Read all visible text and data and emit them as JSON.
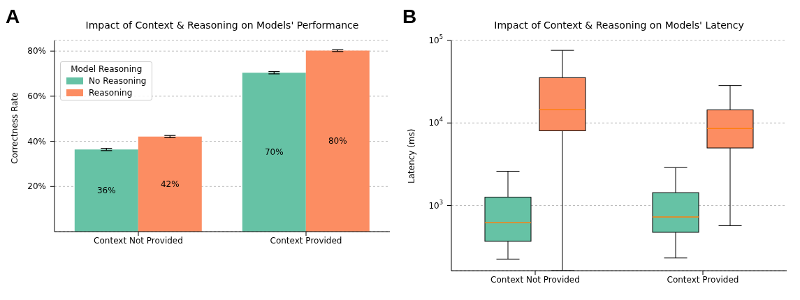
{
  "chart_data": [
    {
      "type": "bar",
      "title": "Impact of Context & Reasoning on Models' Performance",
      "ylabel": "Correctness Rate",
      "categories": [
        "Context Not Provided",
        "Context Provided"
      ],
      "series": [
        {
          "name": "No Reasoning",
          "color": "#66c2a5",
          "values": [
            36.4,
            70.4
          ],
          "errors": [
            0.5,
            0.5
          ],
          "value_labels": [
            "36%",
            "70%"
          ]
        },
        {
          "name": "Reasoning",
          "color": "#fc8d62",
          "values": [
            42.1,
            80.2
          ],
          "errors": [
            0.5,
            0.4
          ],
          "value_labels": [
            "42%",
            "80%"
          ]
        }
      ],
      "ylim": [
        0,
        84.7
      ],
      "yticks": [
        {
          "value": 20,
          "label": "20%"
        },
        {
          "value": 40,
          "label": "40%"
        },
        {
          "value": 60,
          "label": "60%"
        },
        {
          "value": 80,
          "label": "80%"
        }
      ],
      "grid": "y",
      "legend": "top left",
      "legend_title": "Model Reasoning",
      "annotations": [
        "A"
      ]
    },
    {
      "type": "box",
      "title": "Impact of Context & Reasoning on Models' Latency",
      "ylabel": "Latency (ms)",
      "categories": [
        "Context Not Provided",
        "Context Provided"
      ],
      "series": [
        {
          "color": "#66c2a5",
          "boxes": [
            {
              "low": 224,
              "q1": 368,
              "median": 617,
              "q3": 1260,
              "high": 2600
            },
            {
              "low": 231,
              "q1": 473,
              "median": 725,
              "q3": 1430,
              "high": 2880
            }
          ]
        },
        {
          "color": "#fc8d62",
          "boxes": [
            {
              "low": 162,
              "q1": 8040,
              "median": 14500,
              "q3": 35400,
              "high": 75900
            },
            {
              "low": 570,
              "q1": 4980,
              "median": 8570,
              "q3": 14400,
              "high": 28400
            }
          ]
        }
      ],
      "ylim": [
        162,
        100000
      ],
      "yticks": [
        {
          "value": 1000,
          "label": "10$^{3}$"
        },
        {
          "value": 10000,
          "label": "10$^{4}$"
        },
        {
          "value": 100000,
          "label": "10$^{5}$"
        }
      ],
      "log": true,
      "grid": "y",
      "annotations": [
        "B"
      ]
    }
  ]
}
